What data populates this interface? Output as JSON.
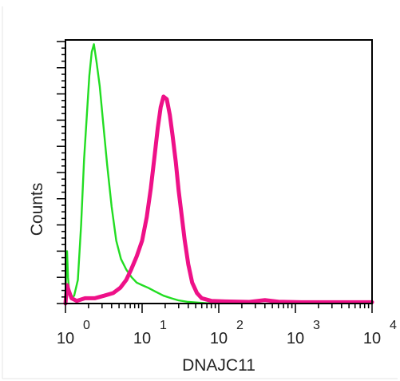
{
  "chart_data": {
    "type": "line",
    "title": "",
    "xlabel": "DNAJC11",
    "ylabel": "Counts",
    "x_scale": "log",
    "xlim": [
      1,
      10000
    ],
    "ylim": [
      0,
      100
    ],
    "y_ticks_labeled": false,
    "grid": false,
    "legend": "none",
    "x_tick_labels": [
      {
        "base": "10",
        "exp": "0",
        "value": 1
      },
      {
        "base": "10",
        "exp": "1",
        "value": 10
      },
      {
        "base": "10",
        "exp": "2",
        "value": 100
      },
      {
        "base": "10",
        "exp": "3",
        "value": 1000
      },
      {
        "base": "10",
        "exp": "4",
        "value": 10000
      }
    ],
    "series": [
      {
        "color": "#22dd22",
        "points": [
          [
            1.0,
            0
          ],
          [
            1.02,
            12
          ],
          [
            1.05,
            20
          ],
          [
            1.08,
            10
          ],
          [
            1.12,
            4
          ],
          [
            1.18,
            2
          ],
          [
            1.3,
            3
          ],
          [
            1.45,
            9
          ],
          [
            1.6,
            30
          ],
          [
            1.75,
            55
          ],
          [
            1.9,
            72
          ],
          [
            2.05,
            87
          ],
          [
            2.2,
            96
          ],
          [
            2.35,
            99
          ],
          [
            2.55,
            92
          ],
          [
            2.8,
            83
          ],
          [
            3.1,
            69
          ],
          [
            3.5,
            53
          ],
          [
            4.0,
            37
          ],
          [
            4.6,
            24
          ],
          [
            5.3,
            17
          ],
          [
            6.2,
            13
          ],
          [
            7.3,
            10
          ],
          [
            8.5,
            8
          ],
          [
            10,
            7
          ],
          [
            12,
            6
          ],
          [
            15,
            4.5
          ],
          [
            19,
            3
          ],
          [
            24,
            2
          ],
          [
            30,
            1.2
          ],
          [
            40,
            0.6
          ],
          [
            55,
            0.3
          ],
          [
            80,
            0
          ]
        ]
      },
      {
        "color": "#ee1188",
        "points": [
          [
            1.0,
            0
          ],
          [
            1.05,
            7
          ],
          [
            1.1,
            5
          ],
          [
            1.2,
            2
          ],
          [
            1.4,
            1
          ],
          [
            1.8,
            2
          ],
          [
            2.4,
            2
          ],
          [
            3.2,
            3
          ],
          [
            4.2,
            4
          ],
          [
            5.2,
            6
          ],
          [
            6.2,
            9
          ],
          [
            7.2,
            13
          ],
          [
            8.5,
            18
          ],
          [
            10,
            24
          ],
          [
            11.5,
            33
          ],
          [
            13,
            44
          ],
          [
            14.5,
            56
          ],
          [
            16,
            67
          ],
          [
            17.5,
            75
          ],
          [
            19,
            79
          ],
          [
            21,
            78
          ],
          [
            23,
            72
          ],
          [
            25,
            64
          ],
          [
            27.5,
            54
          ],
          [
            30,
            43
          ],
          [
            33,
            33
          ],
          [
            36,
            24
          ],
          [
            40,
            15
          ],
          [
            45,
            8
          ],
          [
            52,
            4
          ],
          [
            60,
            2
          ],
          [
            80,
            1
          ],
          [
            120,
            0.8
          ],
          [
            250,
            0.6
          ],
          [
            400,
            1.3
          ],
          [
            600,
            0.7
          ],
          [
            1200,
            0.5
          ],
          [
            3000,
            0.5
          ],
          [
            10000,
            0.5
          ]
        ]
      }
    ]
  }
}
